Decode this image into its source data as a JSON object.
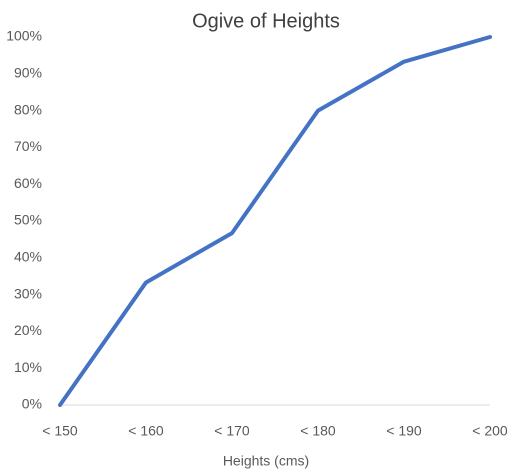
{
  "chart_data": {
    "type": "line",
    "title": "Ogive of Heights",
    "x_label": "Heights (cms)",
    "categories": [
      "< 150",
      "< 160",
      "< 170",
      "< 180",
      "< 190",
      "< 200"
    ],
    "values": [
      0,
      33.3,
      46.7,
      80,
      93.3,
      100
    ],
    "color": "#4472c4",
    "ylim": [
      0,
      100
    ],
    "yticks": [
      {
        "value": 0,
        "label": "0%"
      },
      {
        "value": 10,
        "label": "10%"
      },
      {
        "value": 20,
        "label": "20%"
      },
      {
        "value": 30,
        "label": "30%"
      },
      {
        "value": 40,
        "label": "40%"
      },
      {
        "value": 50,
        "label": "50%"
      },
      {
        "value": 60,
        "label": "60%"
      },
      {
        "value": 70,
        "label": "70%"
      },
      {
        "value": 80,
        "label": "80%"
      },
      {
        "value": 90,
        "label": "90%"
      },
      {
        "value": 100,
        "label": "100%"
      }
    ],
    "grid": false
  }
}
